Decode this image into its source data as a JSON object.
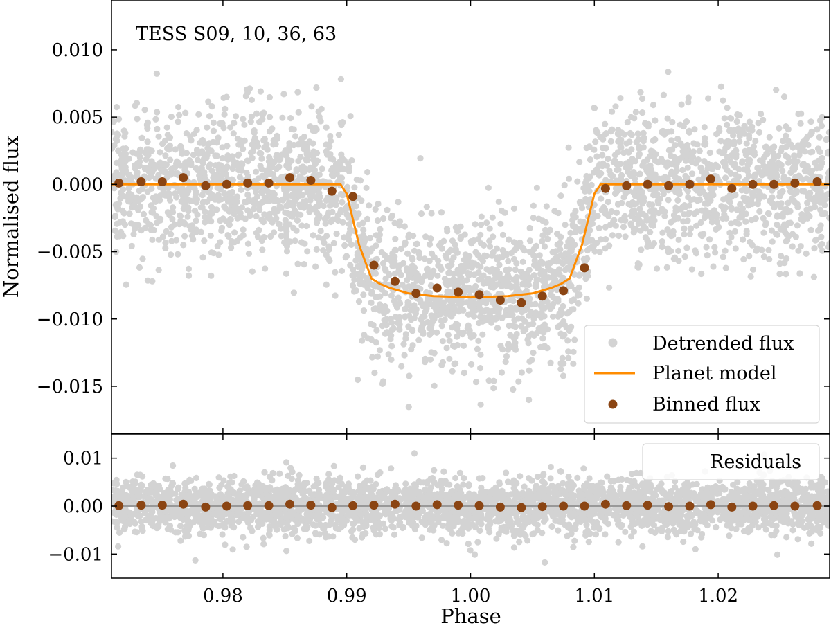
{
  "chart_data": [
    {
      "type": "scatter",
      "panel": "main",
      "annotation": "TESS S09, 10, 36, 63",
      "ylabel": "Normalised flux",
      "xlabel": "",
      "xlim": [
        0.971,
        1.029
      ],
      "ylim": [
        -0.0185,
        0.0137
      ],
      "x_ticks": [
        0.98,
        0.99,
        1.0,
        1.01,
        1.02
      ],
      "y_ticks": [
        0.01,
        0.005,
        0.0,
        -0.005,
        -0.01,
        -0.015
      ],
      "y_tick_labels": [
        "0.010",
        "0.005",
        "0.000",
        "−0.005",
        "−0.010",
        "−0.015"
      ],
      "legend_position": "lower-right",
      "grid": false,
      "colors": {
        "detrended": "#d3d3d3",
        "model": "#ff8c00",
        "binned": "#8b4513"
      },
      "series": [
        {
          "name": "Detrended flux",
          "kind": "scatter-cloud",
          "scatter_sigma": 0.0027,
          "point_count": 3200
        },
        {
          "name": "Planet model",
          "kind": "line",
          "x": [
            0.971,
            0.9895,
            0.99,
            0.991,
            0.992,
            0.9927,
            0.9935,
            0.995,
            0.997,
            1.0,
            1.003,
            1.005,
            1.0065,
            1.0073,
            1.008,
            1.009,
            1.01,
            1.0105,
            1.029
          ],
          "y": [
            0.0,
            0.0,
            -0.0007,
            -0.0045,
            -0.007,
            -0.0074,
            -0.0077,
            -0.0081,
            -0.0083,
            -0.0084,
            -0.0083,
            -0.0081,
            -0.0077,
            -0.0074,
            -0.007,
            -0.0045,
            -0.0007,
            0.0,
            0.0
          ]
        },
        {
          "name": "Binned flux",
          "kind": "points",
          "x": [
            0.9716,
            0.9734,
            0.9751,
            0.9768,
            0.9786,
            0.9803,
            0.982,
            0.9837,
            0.9854,
            0.9871,
            0.9888,
            0.9905,
            0.9922,
            0.9939,
            0.9956,
            0.9973,
            0.999,
            1.0007,
            1.0024,
            1.0041,
            1.0058,
            1.0075,
            1.0092,
            1.0109,
            1.0126,
            1.0143,
            1.016,
            1.0177,
            1.0194,
            1.0211,
            1.0228,
            1.0245,
            1.0262,
            1.028
          ],
          "y": [
            0.0001,
            0.0002,
            0.0002,
            0.0005,
            -0.0001,
            0.0,
            0.0001,
            0.0001,
            0.0005,
            0.0003,
            -0.0005,
            -0.0009,
            -0.006,
            -0.0072,
            -0.0081,
            -0.0077,
            -0.008,
            -0.0082,
            -0.0086,
            -0.0088,
            -0.0083,
            -0.0079,
            -0.0062,
            -0.0003,
            -0.0001,
            0.0,
            -0.0001,
            0.0,
            0.0004,
            -0.0003,
            0.0,
            0.0,
            0.0001,
            0.0002
          ]
        }
      ]
    },
    {
      "type": "scatter",
      "panel": "residuals",
      "xlabel": "Phase",
      "ylabel": "",
      "xlim": [
        0.971,
        1.029
      ],
      "ylim": [
        -0.015,
        0.015
      ],
      "x_ticks": [
        0.98,
        0.99,
        1.0,
        1.01,
        1.02
      ],
      "x_tick_labels": [
        "0.98",
        "0.99",
        "1.00",
        "1.01",
        "1.02"
      ],
      "y_ticks": [
        0.01,
        0.0,
        -0.01
      ],
      "y_tick_labels": [
        "0.01",
        "0.00",
        "−0.01"
      ],
      "legend_position": "top-right",
      "zero_line_color": "#999999",
      "series": [
        {
          "name": "Residuals",
          "kind": "scatter-cloud",
          "scatter_sigma": 0.0028,
          "point_count": 3200
        },
        {
          "kind": "points",
          "x": [
            0.9716,
            0.9734,
            0.9751,
            0.9768,
            0.9786,
            0.9803,
            0.982,
            0.9837,
            0.9854,
            0.9871,
            0.9888,
            0.9905,
            0.9922,
            0.9939,
            0.9956,
            0.9973,
            0.999,
            1.0007,
            1.0024,
            1.0041,
            1.0058,
            1.0075,
            1.0092,
            1.0109,
            1.0126,
            1.0143,
            1.016,
            1.0177,
            1.0194,
            1.0211,
            1.0228,
            1.0245,
            1.0262,
            1.028
          ],
          "y": [
            0.0001,
            0.0002,
            0.0002,
            0.0004,
            -0.0002,
            0.0,
            0.0001,
            0.0001,
            0.0004,
            0.0002,
            -0.0003,
            0.0001,
            0.0002,
            0.0004,
            0.0,
            0.0003,
            0.0002,
            0.0001,
            -0.0002,
            -0.0003,
            -0.0001,
            0.0,
            0.0,
            0.0004,
            0.0001,
            0.0002,
            -0.0001,
            0.0,
            0.0003,
            -0.0002,
            0.0,
            0.0001,
            0.0,
            0.0001
          ]
        }
      ]
    }
  ]
}
